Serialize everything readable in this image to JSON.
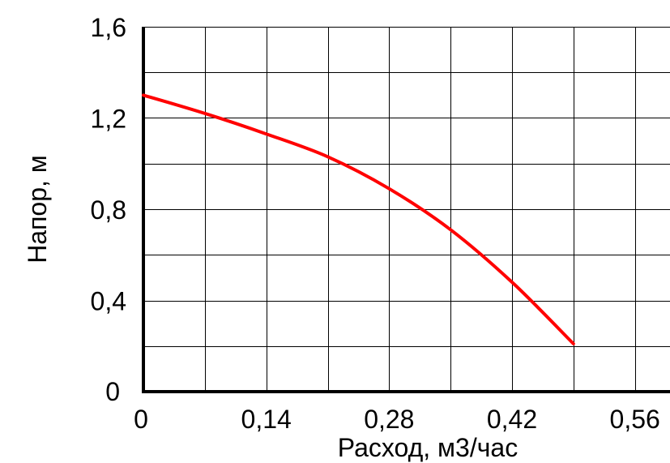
{
  "chart_data": {
    "type": "line",
    "title": "",
    "xlabel": "Расход, м3/час",
    "ylabel": "Напор, м",
    "xlim": [
      0,
      0.6
    ],
    "ylim": [
      0,
      1.6
    ],
    "x_ticks": [
      {
        "value": 0,
        "label": "0"
      },
      {
        "value": 0.14,
        "label": "0,14"
      },
      {
        "value": 0.28,
        "label": "0,28"
      },
      {
        "value": 0.42,
        "label": "0,42"
      },
      {
        "value": 0.56,
        "label": "0,56"
      }
    ],
    "y_ticks": [
      {
        "value": 0,
        "label": "0"
      },
      {
        "value": 0.4,
        "label": "0,4"
      },
      {
        "value": 0.8,
        "label": "0,8"
      },
      {
        "value": 1.2,
        "label": "1,2"
      },
      {
        "value": 1.6,
        "label": "1,6"
      }
    ],
    "grid": true,
    "x_grid_step": 0.07,
    "y_grid_step": 0.2,
    "series": [
      {
        "color": "#ff0000",
        "x": [
          0,
          0.07,
          0.14,
          0.21,
          0.28,
          0.35,
          0.42,
          0.49
        ],
        "y": [
          1.3,
          1.22,
          1.13,
          1.03,
          0.89,
          0.71,
          0.48,
          0.21
        ]
      }
    ]
  }
}
